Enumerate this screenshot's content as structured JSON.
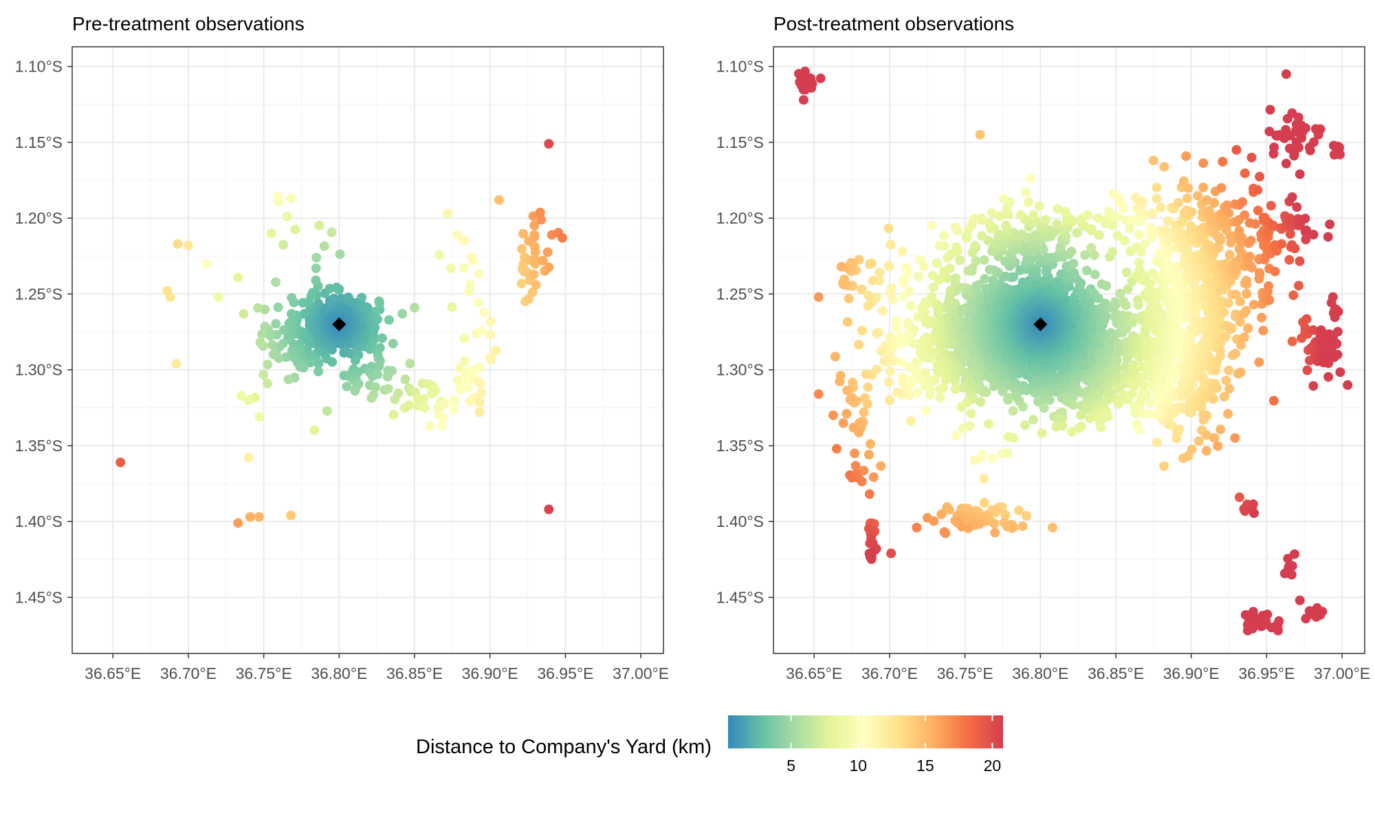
{
  "chart_data": {
    "type": "scatter",
    "xticks": [
      {
        "value": 36.65,
        "label": "36.65°E"
      },
      {
        "value": 36.7,
        "label": "36.70°E"
      },
      {
        "value": 36.75,
        "label": "36.75°E"
      },
      {
        "value": 36.8,
        "label": "36.80°E"
      },
      {
        "value": 36.85,
        "label": "36.85°E"
      },
      {
        "value": 36.9,
        "label": "36.90°E"
      },
      {
        "value": 36.95,
        "label": "36.95°E"
      },
      {
        "value": 37.0,
        "label": "37.00°E"
      }
    ],
    "yticks": [
      {
        "value": -1.1,
        "label": "1.10°S"
      },
      {
        "value": -1.15,
        "label": "1.15°S"
      },
      {
        "value": -1.2,
        "label": "1.20°S"
      },
      {
        "value": -1.25,
        "label": "1.25°S"
      },
      {
        "value": -1.3,
        "label": "1.30°S"
      },
      {
        "value": -1.35,
        "label": "1.35°S"
      },
      {
        "value": -1.4,
        "label": "1.40°S"
      },
      {
        "value": -1.45,
        "label": "1.45°S"
      }
    ],
    "xlim": [
      36.623,
      37.015
    ],
    "ylim": [
      -1.487,
      -1.087
    ],
    "grid": true,
    "legend_position": "bottom",
    "yard": {
      "lon": 36.8,
      "lat": -1.27
    },
    "colorbar": {
      "title": "Distance to Company's Yard (km)",
      "range": [
        0.3,
        20.8
      ],
      "ticks": [
        5,
        10,
        15,
        20
      ],
      "colors": [
        "#3288BD",
        "#66C2A5",
        "#ABDDA4",
        "#E6F598",
        "#FFFFBF",
        "#FEE08B",
        "#FDAE61",
        "#F46D43",
        "#D53E4F"
      ]
    },
    "panels": [
      {
        "title": "Pre-treatment observations",
        "clusters": [
          {
            "lon": 36.8,
            "lat": -1.27,
            "sx": 0.013,
            "sy": 0.009,
            "n": 380
          },
          {
            "lon": 36.77,
            "lat": -1.282,
            "sx": 0.013,
            "sy": 0.012,
            "n": 60
          },
          {
            "lon": 36.785,
            "lat": -1.255,
            "sx": 0.01,
            "sy": 0.012,
            "n": 25
          },
          {
            "lon": 36.82,
            "lat": -1.3,
            "sx": 0.012,
            "sy": 0.01,
            "n": 40
          },
          {
            "lon": 36.855,
            "lat": -1.32,
            "sx": 0.012,
            "sy": 0.008,
            "n": 28
          },
          {
            "lon": 36.885,
            "lat": -1.31,
            "sx": 0.008,
            "sy": 0.01,
            "n": 18
          },
          {
            "lon": 36.895,
            "lat": -1.27,
            "sx": 0.008,
            "sy": 0.025,
            "n": 14
          },
          {
            "lon": 36.885,
            "lat": -1.23,
            "sx": 0.01,
            "sy": 0.015,
            "n": 10
          },
          {
            "lon": 36.928,
            "lat": -1.225,
            "sx": 0.006,
            "sy": 0.015,
            "n": 32
          },
          {
            "lon": 36.775,
            "lat": -1.205,
            "sx": 0.012,
            "sy": 0.012,
            "n": 10
          },
          {
            "lon": 36.76,
            "lat": -1.32,
            "sx": 0.015,
            "sy": 0.01,
            "n": 8
          }
        ],
        "points": [
          {
            "lon": 36.655,
            "lat": -1.361
          },
          {
            "lon": 36.939,
            "lat": -1.151
          },
          {
            "lon": 36.939,
            "lat": -1.392
          },
          {
            "lon": 36.733,
            "lat": -1.401
          },
          {
            "lon": 36.741,
            "lat": -1.397
          },
          {
            "lon": 36.747,
            "lat": -1.397
          },
          {
            "lon": 36.768,
            "lat": -1.396
          },
          {
            "lon": 36.74,
            "lat": -1.358
          },
          {
            "lon": 36.692,
            "lat": -1.296
          },
          {
            "lon": 36.686,
            "lat": -1.248
          },
          {
            "lon": 36.693,
            "lat": -1.217
          },
          {
            "lon": 36.7,
            "lat": -1.218
          },
          {
            "lon": 36.712,
            "lat": -1.23
          },
          {
            "lon": 36.733,
            "lat": -1.239
          },
          {
            "lon": 36.735,
            "lat": -1.317
          },
          {
            "lon": 36.768,
            "lat": -1.187
          },
          {
            "lon": 36.906,
            "lat": -1.188
          },
          {
            "lon": 36.934,
            "lat": -1.201
          },
          {
            "lon": 36.948,
            "lat": -1.213
          },
          {
            "lon": 36.941,
            "lat": -1.211
          },
          {
            "lon": 36.872,
            "lat": -1.197
          },
          {
            "lon": 36.85,
            "lat": -1.259
          },
          {
            "lon": 36.893,
            "lat": -1.328
          },
          {
            "lon": 36.868,
            "lat": -1.337
          },
          {
            "lon": 36.755,
            "lat": -1.21
          },
          {
            "lon": 36.72,
            "lat": -1.252
          },
          {
            "lon": 36.688,
            "lat": -1.252
          }
        ]
      },
      {
        "title": "Post-treatment observations",
        "clusters": [
          {
            "lon": 36.8,
            "lat": -1.27,
            "sx": 0.022,
            "sy": 0.014,
            "n": 1100
          },
          {
            "lon": 36.755,
            "lat": -1.285,
            "sx": 0.022,
            "sy": 0.018,
            "n": 500
          },
          {
            "lon": 36.83,
            "lat": -1.3,
            "sx": 0.022,
            "sy": 0.017,
            "n": 400
          },
          {
            "lon": 36.79,
            "lat": -1.215,
            "sx": 0.022,
            "sy": 0.015,
            "n": 160
          },
          {
            "lon": 36.895,
            "lat": -1.28,
            "sx": 0.016,
            "sy": 0.03,
            "n": 600
          },
          {
            "lon": 36.915,
            "lat": -1.22,
            "sx": 0.025,
            "sy": 0.022,
            "n": 280
          },
          {
            "lon": 36.96,
            "lat": -1.205,
            "sx": 0.012,
            "sy": 0.008,
            "n": 40
          },
          {
            "lon": 36.71,
            "lat": -1.275,
            "sx": 0.02,
            "sy": 0.025,
            "n": 70
          },
          {
            "lon": 36.68,
            "lat": -1.24,
            "sx": 0.01,
            "sy": 0.01,
            "n": 20
          },
          {
            "lon": 36.68,
            "lat": -1.35,
            "sx": 0.008,
            "sy": 0.02,
            "n": 30
          },
          {
            "lon": 36.688,
            "lat": -1.41,
            "sx": 0.002,
            "sy": 0.008,
            "n": 18
          },
          {
            "lon": 36.76,
            "lat": -1.397,
            "sx": 0.015,
            "sy": 0.004,
            "n": 60
          },
          {
            "lon": 36.77,
            "lat": -1.35,
            "sx": 0.012,
            "sy": 0.012,
            "n": 14
          },
          {
            "lon": 36.645,
            "lat": -1.111,
            "sx": 0.004,
            "sy": 0.003,
            "n": 22
          },
          {
            "lon": 36.965,
            "lat": -1.145,
            "sx": 0.01,
            "sy": 0.006,
            "n": 34
          },
          {
            "lon": 36.997,
            "lat": -1.154,
            "sx": 0.002,
            "sy": 0.004,
            "n": 8
          },
          {
            "lon": 36.985,
            "lat": -1.285,
            "sx": 0.008,
            "sy": 0.012,
            "n": 45
          },
          {
            "lon": 36.997,
            "lat": -1.262,
            "sx": 0.002,
            "sy": 0.004,
            "n": 6
          },
          {
            "lon": 36.945,
            "lat": -1.466,
            "sx": 0.006,
            "sy": 0.003,
            "n": 30
          },
          {
            "lon": 36.958,
            "lat": -1.47,
            "sx": 0.002,
            "sy": 0.002,
            "n": 5
          },
          {
            "lon": 36.966,
            "lat": -1.43,
            "sx": 0.002,
            "sy": 0.004,
            "n": 12
          },
          {
            "lon": 36.983,
            "lat": -1.459,
            "sx": 0.003,
            "sy": 0.002,
            "n": 12
          },
          {
            "lon": 36.938,
            "lat": -1.392,
            "sx": 0.003,
            "sy": 0.003,
            "n": 6
          },
          {
            "lon": 36.73,
            "lat": -1.23,
            "sx": 0.02,
            "sy": 0.01,
            "n": 40
          },
          {
            "lon": 36.86,
            "lat": -1.2,
            "sx": 0.015,
            "sy": 0.01,
            "n": 30
          }
        ],
        "points": [
          {
            "lon": 36.963,
            "lat": -1.105
          },
          {
            "lon": 36.643,
            "lat": -1.122
          },
          {
            "lon": 36.76,
            "lat": -1.145
          },
          {
            "lon": 36.972,
            "lat": -1.171
          },
          {
            "lon": 36.963,
            "lat": -1.164
          },
          {
            "lon": 36.875,
            "lat": -1.162
          },
          {
            "lon": 36.905,
            "lat": -1.347
          },
          {
            "lon": 36.808,
            "lat": -1.404
          },
          {
            "lon": 36.701,
            "lat": -1.421
          },
          {
            "lon": 36.653,
            "lat": -1.316
          },
          {
            "lon": 36.932,
            "lat": -1.384
          },
          {
            "lon": 36.972,
            "lat": -1.452
          },
          {
            "lon": 36.976,
            "lat": -1.464
          },
          {
            "lon": 36.945,
            "lat": -1.295
          },
          {
            "lon": 36.997,
            "lat": -1.29
          },
          {
            "lon": 36.945,
            "lat": -1.24
          },
          {
            "lon": 36.668,
            "lat": -1.232
          },
          {
            "lon": 36.683,
            "lat": -1.328
          },
          {
            "lon": 36.7,
            "lat": -1.32
          },
          {
            "lon": 36.718,
            "lat": -1.404
          },
          {
            "lon": 36.93,
            "lat": -1.155
          },
          {
            "lon": 36.92,
            "lat": -1.18
          },
          {
            "lon": 36.94,
            "lat": -1.16
          }
        ]
      }
    ]
  }
}
